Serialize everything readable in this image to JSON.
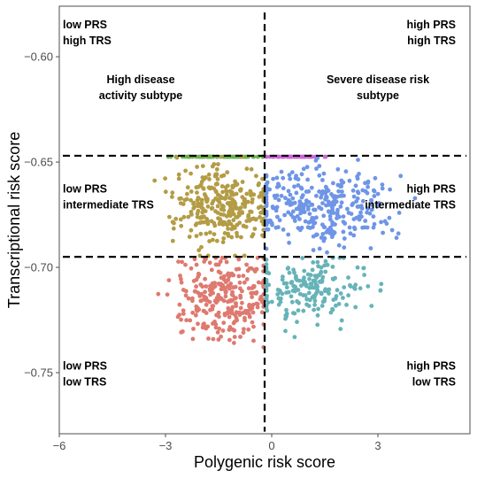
{
  "chart_data": {
    "type": "scatter",
    "xlabel": "Polygenic risk score",
    "ylabel": "Transcriptional risk score",
    "xlim": [
      -6.0,
      5.6
    ],
    "ylim": [
      -0.779,
      -0.576
    ],
    "x_ticks": [
      -6,
      -3,
      0,
      3
    ],
    "x_tick_labels": [
      "−6",
      "−3",
      "0",
      "3"
    ],
    "y_ticks": [
      -0.6,
      -0.65,
      -0.7,
      -0.75
    ],
    "y_tick_labels": [
      "−0.60",
      "−0.65",
      "−0.70",
      "−0.75"
    ],
    "grid": false,
    "legend": "none",
    "thresholds": {
      "prs": -0.2,
      "trs_upper": -0.647,
      "trs_lower": -0.695
    },
    "groups": [
      {
        "key": "high_disease_activity",
        "quadrant": "low PRS / high TRS",
        "color": "#6ab04c"
      },
      {
        "key": "severe_disease_risk",
        "quadrant": "high PRS / high TRS",
        "color": "#cc66d6"
      },
      {
        "key": "low_prs_intermediate_trs",
        "quadrant": "low PRS / intermediate TRS",
        "color": "#b39c45"
      },
      {
        "key": "high_prs_intermediate_trs",
        "quadrant": "high PRS / intermediate TRS",
        "color": "#6e95e6"
      },
      {
        "key": "low_prs_low_trs",
        "quadrant": "low PRS / low TRS",
        "color": "#de7a70"
      },
      {
        "key": "high_prs_low_trs",
        "quadrant": "high PRS / low TRS",
        "color": "#66b3b8"
      }
    ],
    "annotations": [
      {
        "lines": [
          "low PRS",
          "high TRS"
        ],
        "x": -5.9,
        "y": -0.5865,
        "anchor": "start"
      },
      {
        "lines": [
          "high  PRS",
          "high TRS"
        ],
        "x": 5.2,
        "y": -0.5865,
        "anchor": "end"
      },
      {
        "lines": [
          "High disease",
          "activity subtype"
        ],
        "x": -3.7,
        "y": -0.6125,
        "anchor": "middle"
      },
      {
        "lines": [
          "Severe disease risk",
          "subtype"
        ],
        "x": 3.0,
        "y": -0.6125,
        "anchor": "middle"
      },
      {
        "lines": [
          "low PRS",
          "intermediate TRS"
        ],
        "x": -5.9,
        "y": -0.6645,
        "anchor": "start"
      },
      {
        "lines": [
          "high  PRS",
          "intermediate TRS"
        ],
        "x": 5.2,
        "y": -0.6645,
        "anchor": "end"
      },
      {
        "lines": [
          "low PRS",
          "low TRS"
        ],
        "x": -5.9,
        "y": -0.7485,
        "anchor": "start"
      },
      {
        "lines": [
          "high  PRS",
          "low TRS"
        ],
        "x": 5.2,
        "y": -0.7485,
        "anchor": "end"
      }
    ]
  }
}
